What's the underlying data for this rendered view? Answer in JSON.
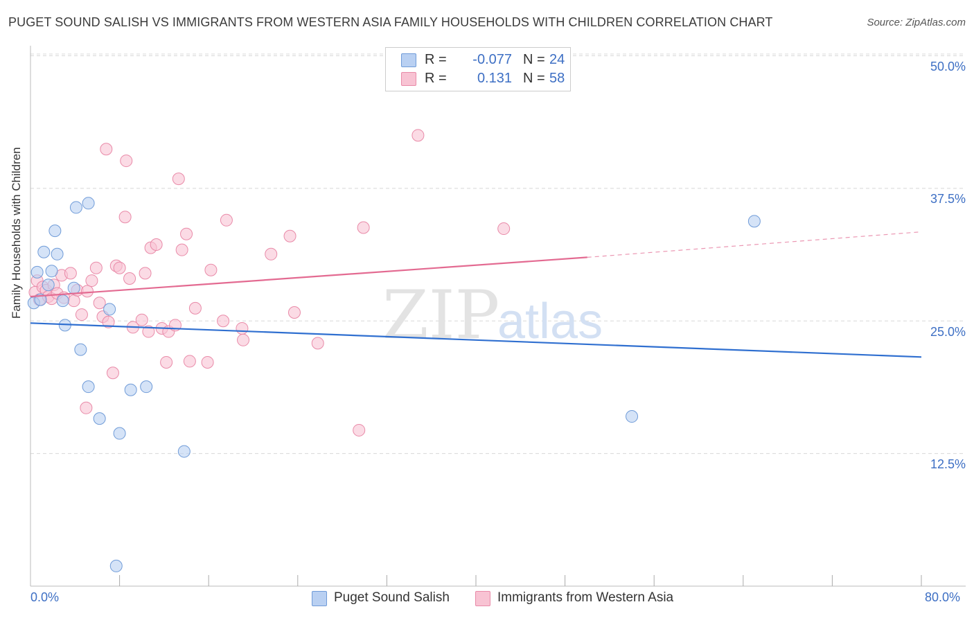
{
  "header": {
    "title": "PUGET SOUND SALISH VS IMMIGRANTS FROM WESTERN ASIA FAMILY HOUSEHOLDS WITH CHILDREN CORRELATION CHART",
    "source": "Source: ZipAtlas.com"
  },
  "legend": {
    "r_label": "R =",
    "n_label": "N =",
    "series1": {
      "r": "-0.077",
      "n": "24"
    },
    "series2": {
      "r": "0.131",
      "n": "58"
    }
  },
  "watermark": {
    "zip": "ZIP",
    "atlas": "atlas"
  },
  "colors": {
    "blue_fill": "#b9d0f2",
    "blue_stroke": "#6f9bd8",
    "blue_line": "#2f6fd0",
    "pink_fill": "#f8c3d3",
    "pink_stroke": "#e98aa8",
    "pink_line": "#e36a91",
    "tick_text": "#3d6fc4",
    "grid": "#d8d8d8"
  },
  "chart_data": {
    "type": "scatter",
    "title": "PUGET SOUND SALISH VS IMMIGRANTS FROM WESTERN ASIA FAMILY HOUSEHOLDS WITH CHILDREN CORRELATION CHART",
    "xlabel": "",
    "ylabel": "Family Households with Children",
    "xlim": [
      0,
      80
    ],
    "ylim": [
      0,
      52
    ],
    "x_tick_labels": [
      "0.0%",
      "80.0%"
    ],
    "y_ticks": [
      12.5,
      25.0,
      37.5,
      50.0
    ],
    "y_tick_labels": [
      "12.5%",
      "25.0%",
      "37.5%",
      "50.0%"
    ],
    "grid": true,
    "series": [
      {
        "name": "Puget Sound Salish",
        "color": "blue",
        "r": -0.077,
        "n": 24,
        "points": [
          [
            0.3,
            26.7
          ],
          [
            0.9,
            27.0
          ],
          [
            0.6,
            29.6
          ],
          [
            1.2,
            31.5
          ],
          [
            1.9,
            29.7
          ],
          [
            2.2,
            33.5
          ],
          [
            2.4,
            31.3
          ],
          [
            1.6,
            28.4
          ],
          [
            2.9,
            26.9
          ],
          [
            3.1,
            24.6
          ],
          [
            3.9,
            28.1
          ],
          [
            4.1,
            35.7
          ],
          [
            4.5,
            22.3
          ],
          [
            5.2,
            36.1
          ],
          [
            5.2,
            18.8
          ],
          [
            6.2,
            15.8
          ],
          [
            7.1,
            26.1
          ],
          [
            8.0,
            14.4
          ],
          [
            9.0,
            18.5
          ],
          [
            10.4,
            18.8
          ],
          [
            13.8,
            12.7
          ],
          [
            7.7,
            1.9
          ],
          [
            54.0,
            16.0
          ],
          [
            65.0,
            34.4
          ]
        ],
        "trend": {
          "x": [
            0,
            80
          ],
          "y": [
            24.8,
            21.6
          ]
        }
      },
      {
        "name": "Immigrants from Western Asia",
        "color": "pink",
        "r": 0.131,
        "n": 58,
        "points": [
          [
            0.4,
            27.7
          ],
          [
            0.6,
            28.8
          ],
          [
            0.8,
            27.0
          ],
          [
            1.1,
            28.2
          ],
          [
            1.4,
            27.9
          ],
          [
            1.6,
            27.3
          ],
          [
            1.9,
            27.1
          ],
          [
            2.1,
            28.4
          ],
          [
            2.4,
            27.6
          ],
          [
            2.8,
            29.3
          ],
          [
            3.0,
            27.2
          ],
          [
            3.6,
            29.5
          ],
          [
            3.9,
            26.9
          ],
          [
            4.2,
            27.9
          ],
          [
            4.6,
            25.6
          ],
          [
            5.0,
            16.8
          ],
          [
            5.1,
            27.8
          ],
          [
            5.5,
            28.8
          ],
          [
            5.9,
            30.0
          ],
          [
            6.2,
            26.7
          ],
          [
            6.5,
            25.4
          ],
          [
            6.8,
            41.2
          ],
          [
            7.0,
            24.9
          ],
          [
            7.4,
            20.1
          ],
          [
            7.7,
            30.2
          ],
          [
            8.0,
            30.0
          ],
          [
            8.5,
            34.8
          ],
          [
            8.6,
            40.1
          ],
          [
            8.9,
            29.0
          ],
          [
            9.2,
            24.4
          ],
          [
            10.0,
            25.1
          ],
          [
            10.3,
            29.5
          ],
          [
            10.6,
            24.0
          ],
          [
            10.8,
            31.9
          ],
          [
            11.3,
            32.2
          ],
          [
            11.8,
            24.3
          ],
          [
            12.2,
            21.1
          ],
          [
            12.4,
            24.0
          ],
          [
            13.0,
            24.6
          ],
          [
            13.3,
            38.4
          ],
          [
            13.6,
            31.7
          ],
          [
            14.0,
            33.2
          ],
          [
            14.3,
            21.2
          ],
          [
            14.8,
            26.2
          ],
          [
            15.9,
            21.1
          ],
          [
            16.2,
            29.8
          ],
          [
            17.3,
            25.0
          ],
          [
            17.6,
            34.5
          ],
          [
            19.0,
            24.3
          ],
          [
            19.1,
            23.2
          ],
          [
            21.6,
            31.3
          ],
          [
            23.3,
            33.0
          ],
          [
            23.7,
            25.8
          ],
          [
            25.8,
            22.9
          ],
          [
            29.5,
            14.7
          ],
          [
            29.9,
            33.8
          ],
          [
            34.8,
            42.5
          ],
          [
            42.5,
            33.7
          ]
        ],
        "trend": {
          "x": [
            0,
            50
          ],
          "y": [
            27.3,
            31.0
          ]
        },
        "trend_extension": {
          "x": [
            50,
            80
          ],
          "y": [
            31.0,
            33.4
          ]
        }
      }
    ]
  }
}
